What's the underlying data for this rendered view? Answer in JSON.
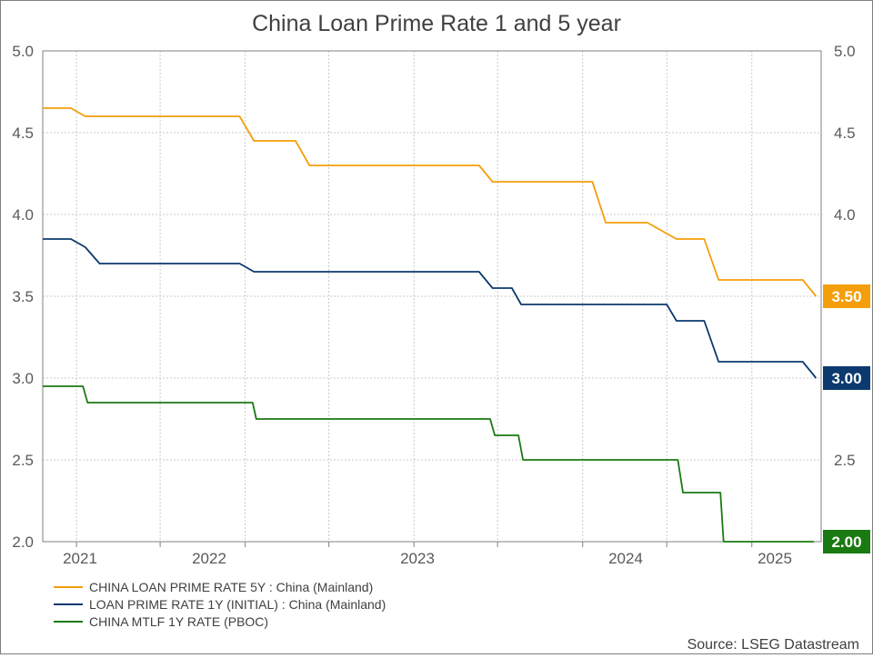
{
  "chart_data": {
    "type": "line",
    "title": "China Loan Prime Rate 1 and 5 year",
    "xlabel": "",
    "ylabel": "",
    "ylim": [
      2.0,
      5.0
    ],
    "yticks": [
      "2.0",
      "2.5",
      "3.0",
      "3.5",
      "4.0",
      "4.5",
      "5.0"
    ],
    "xlim": [
      "2020-10-20",
      "2025-05-31"
    ],
    "xticks": [
      {
        "label": "2021",
        "date": "2021-01-01"
      },
      {
        "label": "2022",
        "date": "2022-01-01"
      },
      {
        "label": "2023",
        "date": "2023-01-01"
      },
      {
        "label": "2024",
        "date": "2024-01-01"
      },
      {
        "label": "2025",
        "date": "2025-01-01"
      }
    ],
    "minor_xticks": [
      "2021-07-01",
      "2022-07-01",
      "2023-07-01",
      "2024-07-01"
    ],
    "grid": true,
    "legend_position": "bottom-left",
    "source": "Source: LSEG Datastream",
    "series": [
      {
        "name": "CHINA LOAN PRIME RATE 5Y : China (Mainland)",
        "color": "#f59e0b",
        "last_label": "3.50",
        "points": [
          [
            "2020-10-20",
            4.65
          ],
          [
            "2020-12-20",
            4.65
          ],
          [
            "2021-01-20",
            4.6
          ],
          [
            "2021-12-20",
            4.6
          ],
          [
            "2022-01-20",
            4.45
          ],
          [
            "2022-04-20",
            4.45
          ],
          [
            "2022-05-20",
            4.3
          ],
          [
            "2022-07-20",
            4.3
          ],
          [
            "2022-08-22",
            4.3
          ],
          [
            "2023-05-22",
            4.3
          ],
          [
            "2023-06-20",
            4.2
          ],
          [
            "2023-06-30",
            4.2
          ],
          [
            "2024-01-22",
            4.2
          ],
          [
            "2024-02-20",
            3.95
          ],
          [
            "2024-05-20",
            3.95
          ],
          [
            "2024-07-22",
            3.85
          ],
          [
            "2024-09-20",
            3.85
          ],
          [
            "2024-10-21",
            3.6
          ],
          [
            "2025-04-21",
            3.6
          ],
          [
            "2025-05-20",
            3.5
          ]
        ]
      },
      {
        "name": "LOAN PRIME RATE 1Y (INITIAL) : China (Mainland)",
        "color": "#0c3a6e",
        "last_label": "3.00",
        "points": [
          [
            "2020-10-20",
            3.85
          ],
          [
            "2020-12-20",
            3.85
          ],
          [
            "2021-01-20",
            3.8
          ],
          [
            "2021-02-20",
            3.7
          ],
          [
            "2021-12-20",
            3.7
          ],
          [
            "2022-01-20",
            3.65
          ],
          [
            "2022-08-22",
            3.65
          ],
          [
            "2023-05-22",
            3.65
          ],
          [
            "2023-06-20",
            3.55
          ],
          [
            "2023-08-01",
            3.55
          ],
          [
            "2023-08-21",
            3.45
          ],
          [
            "2024-01-22",
            3.45
          ],
          [
            "2024-07-01",
            3.45
          ],
          [
            "2024-07-22",
            3.35
          ],
          [
            "2024-09-20",
            3.35
          ],
          [
            "2024-10-21",
            3.1
          ],
          [
            "2025-04-21",
            3.1
          ],
          [
            "2025-05-20",
            3.0
          ]
        ]
      },
      {
        "name": "CHINA MTLF 1Y RATE (PBOC)",
        "color": "#1a7a12",
        "last_label": "2.00",
        "points": [
          [
            "2020-10-20",
            2.95
          ],
          [
            "2021-01-15",
            2.95
          ],
          [
            "2021-01-25",
            2.85
          ],
          [
            "2022-01-17",
            2.85
          ],
          [
            "2022-01-25",
            2.75
          ],
          [
            "2023-06-15",
            2.75
          ],
          [
            "2023-06-25",
            2.65
          ],
          [
            "2023-08-15",
            2.65
          ],
          [
            "2023-08-25",
            2.5
          ],
          [
            "2024-07-25",
            2.5
          ],
          [
            "2024-08-05",
            2.3
          ],
          [
            "2024-10-25",
            2.3
          ],
          [
            "2024-11-01",
            2.0
          ],
          [
            "2025-05-15",
            2.0
          ]
        ]
      }
    ]
  }
}
